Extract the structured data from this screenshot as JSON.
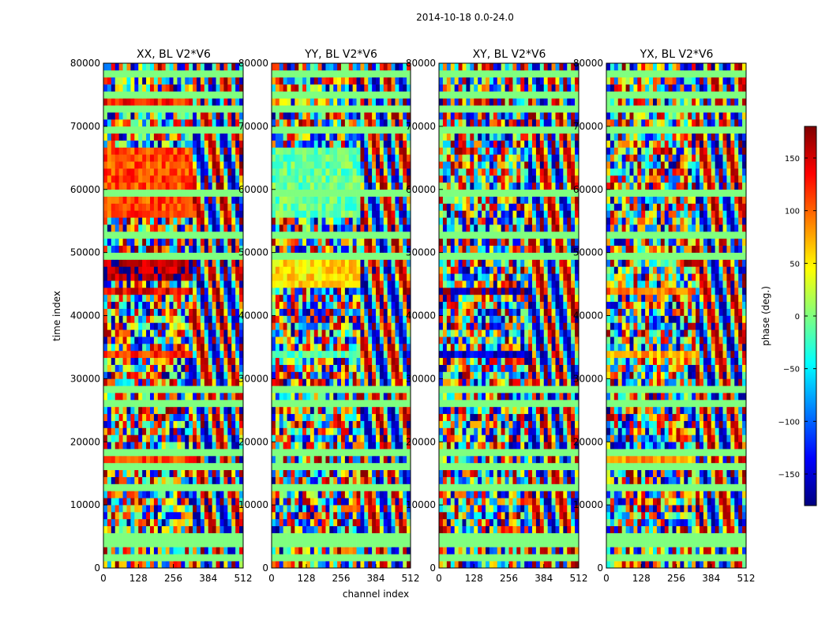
{
  "chart_data": {
    "type": "heatmap",
    "suptitle": "2014-10-18 0.0-24.0",
    "panels": [
      {
        "title": "XX, BL V2*V6",
        "polarization": "XX",
        "baseline": "V2*V6"
      },
      {
        "title": "YY, BL V2*V6",
        "polarization": "YY",
        "baseline": "V2*V6"
      },
      {
        "title": "XY, BL V2*V6",
        "polarization": "XY",
        "baseline": "V2*V6"
      },
      {
        "title": "YX, BL V2*V6",
        "polarization": "YX",
        "baseline": "V2*V6"
      }
    ],
    "xlabel": "channel index",
    "ylabel": "time index",
    "xlim": [
      0,
      512
    ],
    "ylim": [
      0,
      80000
    ],
    "xticks": [
      "0",
      "128",
      "256",
      "384",
      "512"
    ],
    "yticks": [
      "0",
      "10000",
      "20000",
      "30000",
      "40000",
      "50000",
      "60000",
      "70000",
      "80000"
    ],
    "colorbar": {
      "label": "phase (deg.)",
      "range": [
        -180,
        180
      ],
      "ticks": [
        "150",
        "100",
        "50",
        "0",
        "−50",
        "−100",
        "−150"
      ],
      "tick_values": [
        150,
        100,
        50,
        0,
        -50,
        -100,
        -150
      ],
      "colormap": "jet"
    }
  },
  "colors": {
    "jet": [
      "#00007f",
      "#0000ff",
      "#007fff",
      "#00ffff",
      "#7fff7f",
      "#ffff00",
      "#ff7f00",
      "#ff0000",
      "#7f0000"
    ],
    "flag_green": "#7fff7f"
  }
}
